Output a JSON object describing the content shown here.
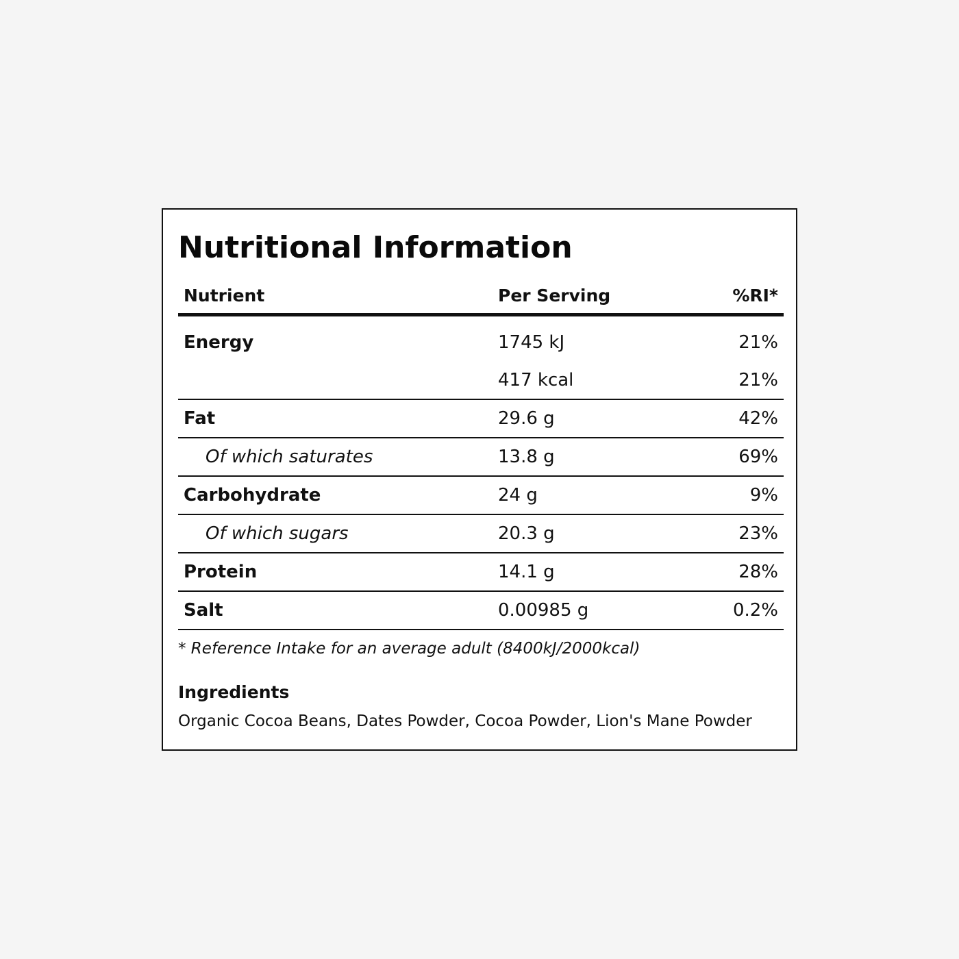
{
  "title": "Nutritional Information",
  "headers": {
    "nutrient": "Nutrient",
    "per_serving": "Per Serving",
    "ri": "%RI*"
  },
  "rows": [
    {
      "name": "Energy",
      "value": "1745 kJ",
      "ri": "21%"
    },
    {
      "name": "",
      "value": "417 kcal",
      "ri": "21%"
    },
    {
      "name": "Fat",
      "value": "29.6 g",
      "ri": "42%"
    },
    {
      "name": "Of which saturates",
      "value": "13.8 g",
      "ri": "69%"
    },
    {
      "name": "Carbohydrate",
      "value": "24 g",
      "ri": "9%"
    },
    {
      "name": "Of which sugars",
      "value": "20.3 g",
      "ri": "23%"
    },
    {
      "name": "Protein",
      "value": "14.1 g",
      "ri": "28%"
    },
    {
      "name": "Salt",
      "value": "0.00985 g",
      "ri": "0.2%"
    }
  ],
  "footnote": "* Reference Intake for an average adult (8400kJ/2000kcal)",
  "ingredients": {
    "heading": "Ingredients",
    "text": "Organic Cocoa Beans, Dates Powder, Cocoa Powder, Lion's Mane Powder"
  }
}
